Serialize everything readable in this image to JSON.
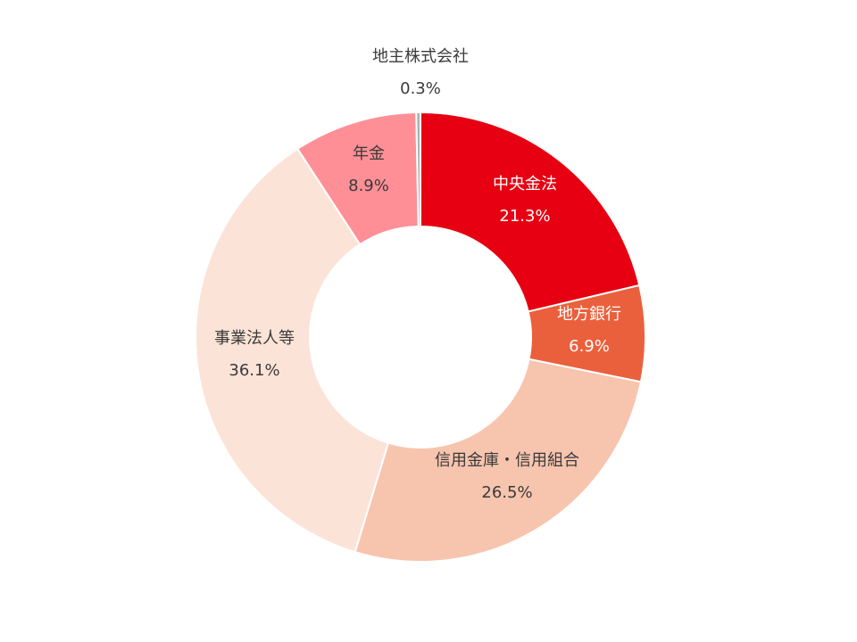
{
  "chart_data": {
    "type": "pie",
    "style": "donut",
    "title": "",
    "slices": [
      {
        "label": "中央金法",
        "value": 21.3,
        "value_text": "21.3%",
        "color": "#e60012",
        "label_color": "#ffffff"
      },
      {
        "label": "地方銀行",
        "value": 6.9,
        "value_text": "6.9%",
        "color": "#eb603c",
        "label_color": "#ffffff"
      },
      {
        "label": "信用金庫・信用組合",
        "value": 26.5,
        "value_text": "26.5%",
        "color": "#f7c4ae",
        "label_color": "#3a3a3a"
      },
      {
        "label": "事業法人等",
        "value": 36.1,
        "value_text": "36.1%",
        "color": "#fce3d7",
        "label_color": "#3a3a3a"
      },
      {
        "label": "年金",
        "value": 8.9,
        "value_text": "8.9%",
        "color": "#ff8f96",
        "label_color": "#3a3a3a"
      },
      {
        "label": "地主株式会社",
        "value": 0.3,
        "value_text": "0.3%",
        "color": "#b0b0b0",
        "label_color": "#3a3a3a"
      }
    ]
  }
}
